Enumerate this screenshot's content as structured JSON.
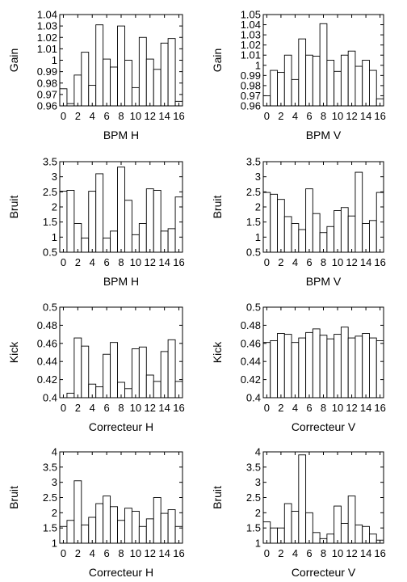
{
  "chart_data": [
    {
      "type": "bar",
      "x": [
        0,
        1,
        2,
        3,
        4,
        5,
        6,
        7,
        8,
        9,
        10,
        11,
        12,
        13,
        14,
        15,
        16
      ],
      "values": [
        0.975,
        0.962,
        0.987,
        1.007,
        0.978,
        1.031,
        1.001,
        0.994,
        1.03,
        1.0,
        0.976,
        1.02,
        1.001,
        0.992,
        1.015,
        1.019,
        0.964
      ],
      "xlabel": "BPM H",
      "ylabel": "Gain",
      "xlim": [
        0,
        16
      ],
      "ylim": [
        0.96,
        1.04
      ],
      "xticks": [
        0,
        2,
        4,
        6,
        8,
        10,
        12,
        14,
        16
      ],
      "xtick_labels": [
        "0",
        "2",
        "4",
        "6",
        "8",
        "10",
        "12",
        "14",
        "16"
      ],
      "yticks": [
        0.96,
        0.97,
        0.98,
        0.99,
        1,
        1.01,
        1.02,
        1.03,
        1.04
      ],
      "ytick_labels": [
        "0.96",
        "0.97",
        "0.98",
        "0.99",
        "1",
        "1.01",
        "1.02",
        "1.03",
        "1.04"
      ]
    },
    {
      "type": "bar",
      "x": [
        0,
        1,
        2,
        3,
        4,
        5,
        6,
        7,
        8,
        9,
        10,
        11,
        12,
        13,
        14,
        15,
        16
      ],
      "values": [
        0.97,
        0.995,
        0.993,
        1.01,
        0.986,
        1.026,
        1.01,
        1.009,
        1.041,
        1.005,
        0.994,
        1.01,
        1.014,
        0.999,
        1.005,
        0.995,
        0.967
      ],
      "xlabel": "BPM V",
      "ylabel": "Gain",
      "xlim": [
        0,
        16
      ],
      "ylim": [
        0.96,
        1.05
      ],
      "xticks": [
        0,
        2,
        4,
        6,
        8,
        10,
        12,
        14,
        16
      ],
      "xtick_labels": [
        "0",
        "2",
        "4",
        "6",
        "8",
        "10",
        "12",
        "14",
        "16"
      ],
      "yticks": [
        0.96,
        0.97,
        0.98,
        0.99,
        1,
        1.01,
        1.02,
        1.03,
        1.04,
        1.05
      ],
      "ytick_labels": [
        "0.96",
        "0.97",
        "0.98",
        "0.99",
        "1",
        "1.01",
        "1.02",
        "1.03",
        "1.04",
        "1.05"
      ]
    },
    {
      "type": "bar",
      "x": [
        0,
        1,
        2,
        3,
        4,
        5,
        6,
        7,
        8,
        9,
        10,
        11,
        12,
        13,
        14,
        15,
        16
      ],
      "values": [
        2.52,
        2.55,
        1.45,
        0.97,
        2.52,
        3.1,
        0.97,
        1.2,
        3.32,
        2.22,
        1.08,
        1.45,
        2.6,
        2.55,
        1.2,
        1.28,
        2.33
      ],
      "xlabel": "BPM H",
      "ylabel": "Bruit",
      "xlim": [
        0,
        16
      ],
      "ylim": [
        0.5,
        3.5
      ],
      "xticks": [
        0,
        2,
        4,
        6,
        8,
        10,
        12,
        14,
        16
      ],
      "xtick_labels": [
        "0",
        "2",
        "4",
        "6",
        "8",
        "10",
        "12",
        "14",
        "16"
      ],
      "yticks": [
        0.5,
        1,
        1.5,
        2,
        2.5,
        3,
        3.5
      ],
      "ytick_labels": [
        "0.5",
        "1",
        "1.5",
        "2",
        "2.5",
        "3",
        "3.5"
      ]
    },
    {
      "type": "bar",
      "x": [
        0,
        1,
        2,
        3,
        4,
        5,
        6,
        7,
        8,
        9,
        10,
        11,
        12,
        13,
        14,
        15,
        16
      ],
      "values": [
        2.48,
        2.42,
        2.25,
        1.68,
        1.45,
        1.25,
        2.6,
        1.78,
        1.15,
        1.35,
        1.88,
        1.98,
        1.7,
        3.15,
        1.45,
        1.55,
        2.48
      ],
      "xlabel": "BPM V",
      "ylabel": "Bruit",
      "xlim": [
        0,
        16
      ],
      "ylim": [
        0.5,
        3.5
      ],
      "xticks": [
        0,
        2,
        4,
        6,
        8,
        10,
        12,
        14,
        16
      ],
      "xtick_labels": [
        "0",
        "2",
        "4",
        "6",
        "8",
        "10",
        "12",
        "14",
        "16"
      ],
      "yticks": [
        0.5,
        1,
        1.5,
        2,
        2.5,
        3,
        3.5
      ],
      "ytick_labels": [
        "0.5",
        "1",
        "1.5",
        "2",
        "2.5",
        "3",
        "3.5"
      ]
    },
    {
      "type": "bar",
      "x": [
        0,
        1,
        2,
        3,
        4,
        5,
        6,
        7,
        8,
        9,
        10,
        11,
        12,
        13,
        14,
        15,
        16
      ],
      "values": [
        0.4,
        0.405,
        0.466,
        0.457,
        0.415,
        0.412,
        0.448,
        0.461,
        0.417,
        0.41,
        0.454,
        0.456,
        0.425,
        0.418,
        0.451,
        0.464,
        0.418
      ],
      "xlabel": "Correcteur H",
      "ylabel": "Kick",
      "xlim": [
        0,
        16
      ],
      "ylim": [
        0.4,
        0.5
      ],
      "xticks": [
        0,
        2,
        4,
        6,
        8,
        10,
        12,
        14,
        16
      ],
      "xtick_labels": [
        "0",
        "2",
        "4",
        "6",
        "8",
        "10",
        "12",
        "14",
        "16"
      ],
      "yticks": [
        0.4,
        0.42,
        0.44,
        0.46,
        0.48,
        0.5
      ],
      "ytick_labels": [
        "0.4",
        "0.42",
        "0.44",
        "0.46",
        "0.48",
        "0.5"
      ]
    },
    {
      "type": "bar",
      "x": [
        0,
        1,
        2,
        3,
        4,
        5,
        6,
        7,
        8,
        9,
        10,
        11,
        12,
        13,
        14,
        15,
        16
      ],
      "values": [
        0.461,
        0.463,
        0.471,
        0.47,
        0.461,
        0.466,
        0.472,
        0.476,
        0.469,
        0.465,
        0.47,
        0.478,
        0.466,
        0.468,
        0.471,
        0.466,
        0.463
      ],
      "xlabel": "Correcteur V",
      "ylabel": "Kick",
      "xlim": [
        0,
        16
      ],
      "ylim": [
        0.4,
        0.5
      ],
      "xticks": [
        0,
        2,
        4,
        6,
        8,
        10,
        12,
        14,
        16
      ],
      "xtick_labels": [
        "0",
        "2",
        "4",
        "6",
        "8",
        "10",
        "12",
        "14",
        "16"
      ],
      "yticks": [
        0.4,
        0.42,
        0.44,
        0.46,
        0.48,
        0.5
      ],
      "ytick_labels": [
        "0.4",
        "0.42",
        "0.44",
        "0.46",
        "0.48",
        "0.5"
      ]
    },
    {
      "type": "bar",
      "x": [
        0,
        1,
        2,
        3,
        4,
        5,
        6,
        7,
        8,
        9,
        10,
        11,
        12,
        13,
        14,
        15,
        16
      ],
      "values": [
        1.55,
        1.75,
        3.05,
        1.6,
        1.85,
        2.3,
        2.55,
        2.2,
        1.75,
        2.15,
        2.05,
        1.55,
        1.8,
        2.5,
        1.98,
        2.1,
        1.55
      ],
      "xlabel": "Correcteur H",
      "ylabel": "Bruit",
      "xlim": [
        0,
        16
      ],
      "ylim": [
        1,
        4
      ],
      "xticks": [
        0,
        2,
        4,
        6,
        8,
        10,
        12,
        14,
        16
      ],
      "xtick_labels": [
        "0",
        "2",
        "4",
        "6",
        "8",
        "10",
        "12",
        "14",
        "16"
      ],
      "yticks": [
        1,
        1.5,
        2,
        2.5,
        3,
        3.5,
        4
      ],
      "ytick_labels": [
        "1",
        "1.5",
        "2",
        "2.5",
        "3",
        "3.5",
        "4"
      ]
    },
    {
      "type": "bar",
      "x": [
        0,
        1,
        2,
        3,
        4,
        5,
        6,
        7,
        8,
        9,
        10,
        11,
        12,
        13,
        14,
        15,
        16
      ],
      "values": [
        1.7,
        1.5,
        1.5,
        2.3,
        2.05,
        3.9,
        2.0,
        1.35,
        1.15,
        1.3,
        2.22,
        1.65,
        2.55,
        1.6,
        1.55,
        1.3,
        1.1
      ],
      "xlabel": "Correcteur V",
      "ylabel": "Bruit",
      "xlim": [
        0,
        16
      ],
      "ylim": [
        1,
        4
      ],
      "xticks": [
        0,
        2,
        4,
        6,
        8,
        10,
        12,
        14,
        16
      ],
      "xtick_labels": [
        "0",
        "2",
        "4",
        "6",
        "8",
        "10",
        "12",
        "14",
        "16"
      ],
      "yticks": [
        1,
        1.5,
        2,
        2.5,
        3,
        3.5,
        4
      ],
      "ytick_labels": [
        "1",
        "1.5",
        "2",
        "2.5",
        "3",
        "3.5",
        "4"
      ]
    }
  ]
}
